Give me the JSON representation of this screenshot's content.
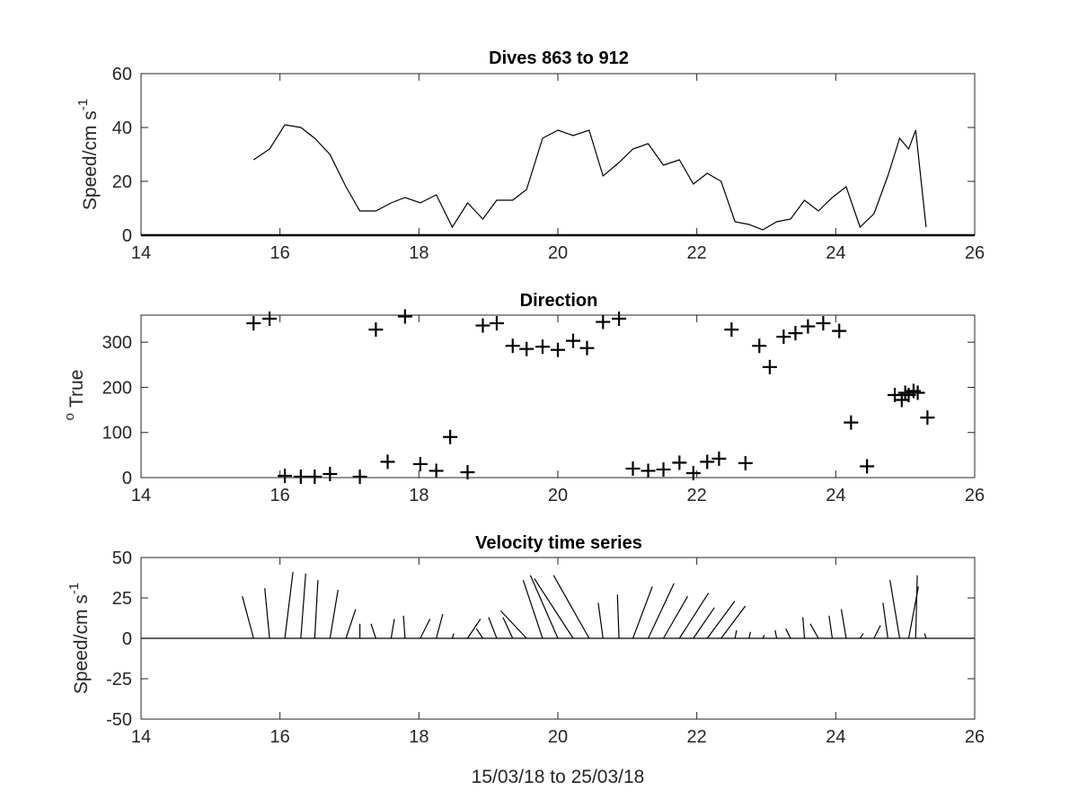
{
  "chart_data": [
    {
      "type": "line",
      "title": "Dives 863 to 912",
      "ylabel": "Speed/cm s",
      "ylabel_superscript": "-1",
      "xlim": [
        14,
        26
      ],
      "ylim": [
        0,
        60
      ],
      "xticks": [
        "14",
        "16",
        "18",
        "20",
        "22",
        "24",
        "26"
      ],
      "yticks": [
        "0",
        "20",
        "40",
        "60"
      ],
      "grid": false,
      "series": [
        {
          "x": [
            15.62,
            15.85,
            16.07,
            16.3,
            16.5,
            16.72,
            16.95,
            17.15,
            17.38,
            17.6,
            17.8,
            18.02,
            18.25,
            18.48,
            18.7,
            18.92,
            19.12,
            19.35,
            19.55,
            19.78,
            20.0,
            20.22,
            20.45,
            20.65,
            20.88,
            21.08,
            21.3,
            21.52,
            21.75,
            21.95,
            22.15,
            22.35,
            22.55,
            22.75,
            22.95,
            23.15,
            23.35,
            23.55,
            23.75,
            23.95,
            24.15,
            24.35,
            24.55,
            24.75,
            24.92,
            25.05,
            25.15,
            25.3
          ],
          "y": [
            28,
            32,
            41,
            40,
            36,
            30,
            18,
            9,
            9,
            12,
            14,
            12,
            15,
            3,
            12,
            6,
            13,
            13,
            17,
            36,
            39,
            37,
            39,
            22,
            27,
            32,
            34,
            26,
            28,
            19,
            23,
            20,
            5,
            4,
            2,
            5,
            6,
            13,
            9,
            14,
            18,
            3,
            8,
            22,
            36,
            32,
            39,
            3
          ]
        }
      ]
    },
    {
      "type": "scatter",
      "title": "Direction",
      "ylabel": "True",
      "ylabel_prefix_superscript": "o",
      "xlim": [
        14,
        26
      ],
      "ylim": [
        0,
        360
      ],
      "xticks": [
        "14",
        "16",
        "18",
        "20",
        "22",
        "24",
        "26"
      ],
      "yticks": [
        "0",
        "100",
        "200",
        "300"
      ],
      "marker": "+",
      "grid": false,
      "series": [
        {
          "x": [
            15.62,
            15.85,
            16.07,
            16.3,
            16.5,
            16.72,
            17.15,
            17.38,
            17.55,
            17.8,
            18.02,
            18.25,
            18.45,
            18.7,
            18.92,
            19.12,
            19.35,
            19.55,
            19.78,
            20.0,
            20.22,
            20.42,
            20.65,
            20.88,
            21.08,
            21.3,
            21.52,
            21.75,
            21.95,
            22.15,
            22.32,
            22.5,
            22.7,
            22.9,
            23.05,
            23.25,
            23.42,
            23.6,
            23.82,
            24.05,
            24.22,
            24.45,
            24.85,
            24.95,
            25.0,
            25.05,
            25.12,
            25.18,
            25.32
          ],
          "y": [
            342,
            352,
            4,
            2,
            2,
            8,
            2,
            328,
            35,
            357,
            30,
            15,
            90,
            12,
            337,
            342,
            292,
            285,
            290,
            283,
            303,
            287,
            345,
            352,
            20,
            15,
            18,
            33,
            10,
            35,
            42,
            328,
            32,
            292,
            245,
            312,
            320,
            335,
            342,
            325,
            122,
            25,
            183,
            172,
            188,
            183,
            192,
            188,
            133
          ]
        }
      ]
    },
    {
      "type": "quiver",
      "title": "Velocity time series",
      "xlabel": "15/03/18 to 25/03/18",
      "ylabel": "Speed/cm s",
      "ylabel_superscript": "-1",
      "xlim": [
        14,
        26
      ],
      "ylim": [
        -50,
        50
      ],
      "xticks": [
        "14",
        "16",
        "18",
        "20",
        "22",
        "24",
        "26"
      ],
      "yticks": [
        "-50",
        "-25",
        "0",
        "25",
        "50"
      ],
      "zero_line": true,
      "grid": false,
      "series": [
        {
          "x": [
            15.62,
            15.85,
            16.07,
            16.3,
            16.5,
            16.72,
            16.95,
            17.15,
            17.38,
            17.6,
            17.8,
            18.02,
            18.25,
            18.48,
            18.7,
            18.92,
            19.12,
            19.35,
            19.55,
            19.78,
            20.0,
            20.22,
            20.45,
            20.65,
            20.88,
            21.08,
            21.3,
            21.52,
            21.75,
            21.95,
            22.15,
            22.35,
            22.55,
            22.75,
            22.95,
            23.15,
            23.35,
            23.55,
            23.75,
            23.95,
            24.15,
            24.35,
            24.55,
            24.75,
            24.92,
            25.05,
            25.15,
            25.3
          ],
          "u": [
            -7,
            -3,
            5,
            3,
            2,
            5,
            6,
            0,
            -3,
            2,
            -1,
            6,
            4,
            1,
            8,
            -4,
            -5,
            -6,
            -16,
            -12,
            -17,
            -24,
            -22,
            -3,
            -1,
            12,
            16,
            15,
            18,
            13,
            17,
            15,
            1,
            1,
            1,
            -1,
            -3,
            -1,
            -5,
            -2,
            -3,
            2,
            4,
            -3,
            -6,
            6,
            1,
            -1
          ],
          "v": [
            26,
            31,
            41,
            40,
            36,
            30,
            18,
            9,
            9,
            12,
            14,
            12,
            15,
            3,
            12,
            6,
            13,
            13,
            17,
            36,
            39,
            37,
            39,
            22,
            27,
            32,
            34,
            26,
            28,
            19,
            23,
            20,
            5,
            4,
            2,
            5,
            6,
            13,
            9,
            14,
            18,
            3,
            8,
            22,
            36,
            32,
            39,
            3
          ]
        }
      ]
    }
  ]
}
